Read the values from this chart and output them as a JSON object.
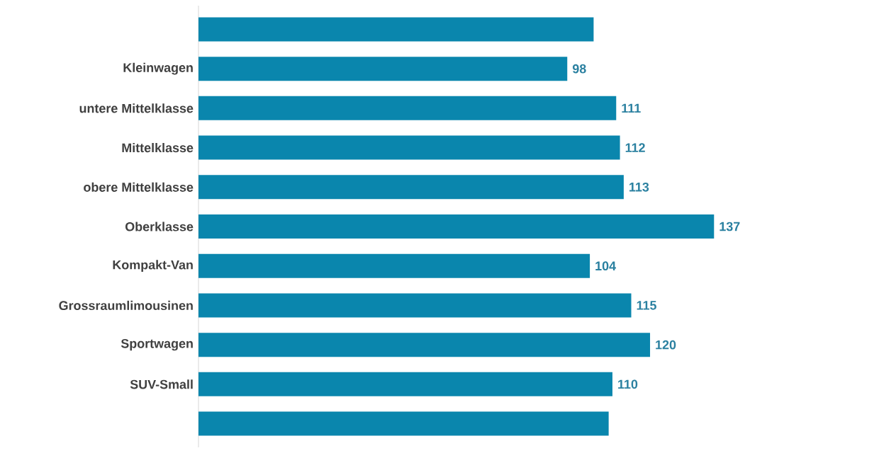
{
  "chart_data": {
    "type": "bar",
    "orientation": "horizontal",
    "color": "#0a86ad",
    "categories": [
      null,
      "Kleinwagen",
      "untere Mittelklasse",
      "Mittelklasse",
      "obere Mittelklasse",
      "Oberklasse",
      "Kompakt-Van",
      "Grossraumlimousinen",
      "Sportwagen",
      "SUV-Small",
      null
    ],
    "values": [
      105,
      98,
      111,
      112,
      113,
      137,
      104,
      115,
      120,
      110,
      109
    ],
    "value_labels": [
      null,
      "98",
      "111",
      "112",
      "113",
      "137",
      "104",
      "115",
      "120",
      "110",
      null
    ]
  }
}
